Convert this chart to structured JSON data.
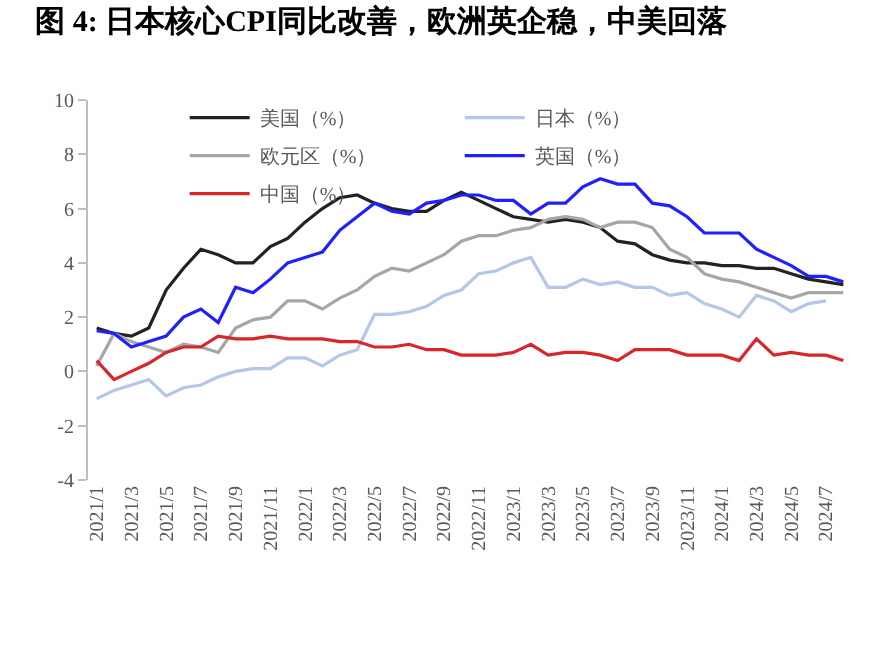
{
  "chart_data": {
    "type": "line",
    "title": "图 4: 日本核心CPI同比改善，欧洲英企稳，中美回落",
    "categories": [
      "2021/1",
      null,
      "2021/3",
      null,
      "2021/5",
      null,
      "2021/7",
      null,
      "2021/9",
      null,
      "2021/11",
      null,
      "2022/1",
      null,
      "2022/3",
      null,
      "2022/5",
      null,
      "2022/7",
      null,
      "2022/9",
      null,
      "2022/11",
      null,
      "2023/1",
      null,
      "2023/3",
      null,
      "2023/5",
      null,
      "2023/7",
      null,
      "2023/9",
      null,
      "2023/11",
      null,
      "2024/1",
      null,
      "2024/3",
      null,
      "2024/5",
      null,
      "2024/7",
      null
    ],
    "series": [
      {
        "name": "美国（%）",
        "color": "#222222",
        "values": [
          1.6,
          1.4,
          1.3,
          1.6,
          3.0,
          3.8,
          4.5,
          4.3,
          4.0,
          4.0,
          4.6,
          4.9,
          5.5,
          6.0,
          6.4,
          6.5,
          6.2,
          6.0,
          5.9,
          5.9,
          6.3,
          6.6,
          6.3,
          6.0,
          5.7,
          5.6,
          5.5,
          5.6,
          5.5,
          5.3,
          4.8,
          4.7,
          4.3,
          4.1,
          4.0,
          4.0,
          3.9,
          3.9,
          3.8,
          3.8,
          3.6,
          3.4,
          3.3,
          3.2
        ]
      },
      {
        "name": "日本（%）",
        "color": "#b4c7e7",
        "values": [
          -1.0,
          -0.7,
          -0.5,
          -0.3,
          -0.9,
          -0.6,
          -0.5,
          -0.2,
          0.0,
          0.1,
          0.1,
          0.5,
          0.5,
          0.2,
          0.6,
          0.8,
          2.1,
          2.1,
          2.2,
          2.4,
          2.8,
          3.0,
          3.6,
          3.7,
          4.0,
          4.2,
          3.1,
          3.1,
          3.4,
          3.2,
          3.3,
          3.1,
          3.1,
          2.8,
          2.9,
          2.5,
          2.3,
          2.0,
          2.8,
          2.6,
          2.2,
          2.5,
          2.6,
          null
        ]
      },
      {
        "name": "欧元区（%）",
        "color": "#a6a6a6",
        "values": [
          0.2,
          1.4,
          1.1,
          0.9,
          0.7,
          1.0,
          0.9,
          0.7,
          1.6,
          1.9,
          2.0,
          2.6,
          2.6,
          2.3,
          2.7,
          3.0,
          3.5,
          3.8,
          3.7,
          4.0,
          4.3,
          4.8,
          5.0,
          5.0,
          5.2,
          5.3,
          5.6,
          5.7,
          5.6,
          5.3,
          5.5,
          5.5,
          5.3,
          4.5,
          4.2,
          3.6,
          3.4,
          3.3,
          3.1,
          2.9,
          2.7,
          2.9,
          2.9,
          2.9
        ]
      },
      {
        "name": "英国（%）",
        "color": "#1f1fff",
        "values": [
          1.5,
          1.4,
          0.9,
          1.1,
          1.3,
          2.0,
          2.3,
          1.8,
          3.1,
          2.9,
          3.4,
          4.0,
          4.2,
          4.4,
          5.2,
          5.7,
          6.2,
          5.9,
          5.8,
          6.2,
          6.3,
          6.5,
          6.5,
          6.3,
          6.3,
          5.8,
          6.2,
          6.2,
          6.8,
          7.1,
          6.9,
          6.9,
          6.2,
          6.1,
          5.7,
          5.1,
          5.1,
          5.1,
          4.5,
          4.2,
          3.9,
          3.5,
          3.5,
          3.3
        ]
      },
      {
        "name": "中国（%）",
        "color": "#d9262b",
        "values": [
          0.4,
          -0.3,
          0.0,
          0.3,
          0.7,
          0.9,
          0.9,
          1.3,
          1.2,
          1.2,
          1.3,
          1.2,
          1.2,
          1.2,
          1.1,
          1.1,
          0.9,
          0.9,
          1.0,
          0.8,
          0.8,
          0.6,
          0.6,
          0.6,
          0.7,
          1.0,
          0.6,
          0.7,
          0.7,
          0.6,
          0.4,
          0.8,
          0.8,
          0.8,
          0.6,
          0.6,
          0.6,
          0.4,
          1.2,
          0.6,
          0.7,
          0.6,
          0.6,
          0.4
        ]
      }
    ],
    "ylim": [
      -4,
      10
    ],
    "yticks": [
      -4,
      -2,
      0,
      2,
      4,
      6,
      8,
      10
    ],
    "grid": false,
    "legend": "top",
    "marker": "none",
    "line_style": "solid"
  }
}
